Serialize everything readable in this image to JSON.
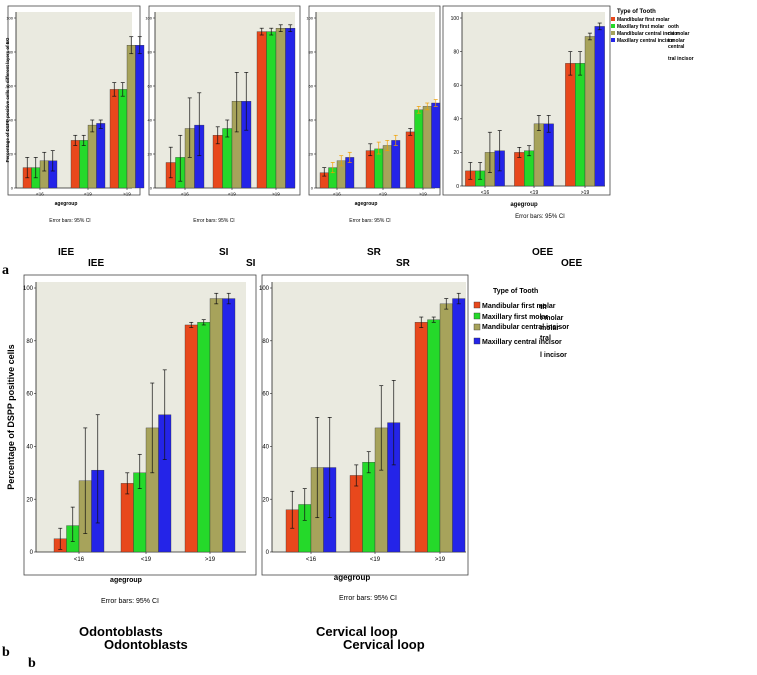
{
  "figure": {
    "panel_a_letter": "a",
    "panel_b_letters": [
      "b",
      "b"
    ],
    "legend_title": "Type of Tooth",
    "legend_entries": [
      "Mandibular first molar",
      "Maxillary first molar",
      "Mandibular central incisor",
      "Maxillary central incisor"
    ],
    "ghost_legend_top": [
      "ooth",
      "rst molar",
      "t molar",
      "central",
      "tral incisor"
    ],
    "ghost_legend_bottom": [
      "th",
      "t molar",
      "molar",
      "tral",
      "l incisor"
    ],
    "colors": [
      "#e8481c",
      "#25d92a",
      "#a7a35b",
      "#2424e8"
    ],
    "plot_bg": "#eaeae0",
    "whisker_highlight": "#f0a000"
  },
  "chart_data": [
    {
      "type": "bar",
      "id": "IEE",
      "title": "IEE",
      "title_ghost": "IEE",
      "xlabel": "agegroup",
      "ylabel": "Percentage of DSPP positive cells in different layers of EO",
      "caption": "Error bars: 95% CI",
      "categories": [
        "<16",
        "<19",
        ">19"
      ],
      "yticks": [
        "0",
        "20",
        "40",
        "60",
        "80",
        "100"
      ],
      "ylim": [
        0,
        100
      ],
      "series": [
        {
          "name": "Mandibular first molar",
          "values": [
            12,
            28,
            58
          ],
          "ci_low": [
            6,
            25,
            54
          ],
          "ci_high": [
            18,
            31,
            62
          ]
        },
        {
          "name": "Maxillary first molar",
          "values": [
            12,
            28,
            58
          ],
          "ci_low": [
            6,
            25,
            54
          ],
          "ci_high": [
            18,
            31,
            62
          ]
        },
        {
          "name": "Mandibular central incisor",
          "values": [
            16,
            37,
            84
          ],
          "ci_low": [
            10,
            33,
            79
          ],
          "ci_high": [
            21,
            40,
            89
          ]
        },
        {
          "name": "Maxillary central incisor",
          "values": [
            16,
            38,
            84
          ],
          "ci_low": [
            10,
            35,
            79
          ],
          "ci_high": [
            22,
            40,
            89
          ]
        }
      ]
    },
    {
      "type": "bar",
      "id": "SI",
      "title": "SI",
      "title_ghost": "SI",
      "xlabel": "",
      "ylabel": "",
      "caption": "Error bars: 95% CI",
      "categories": [
        "<16",
        "<19",
        ">19"
      ],
      "yticks": [
        "0",
        "20",
        "40",
        "60",
        "80",
        "100"
      ],
      "ylim": [
        0,
        100
      ],
      "series": [
        {
          "name": "Mandibular first molar",
          "values": [
            15,
            31,
            92
          ],
          "ci_low": [
            6,
            26,
            90
          ],
          "ci_high": [
            24,
            36,
            94
          ]
        },
        {
          "name": "Maxillary first molar",
          "values": [
            18,
            35,
            92
          ],
          "ci_low": [
            4,
            30,
            90
          ],
          "ci_high": [
            31,
            40,
            94
          ]
        },
        {
          "name": "Mandibular central incisor",
          "values": [
            35,
            51,
            94
          ],
          "ci_low": [
            18,
            33,
            92
          ],
          "ci_high": [
            53,
            68,
            96
          ]
        },
        {
          "name": "Maxillary central incisor",
          "values": [
            37,
            51,
            94
          ],
          "ci_low": [
            19,
            34,
            92
          ],
          "ci_high": [
            56,
            68,
            96
          ]
        }
      ]
    },
    {
      "type": "bar",
      "id": "SR",
      "title": "SR",
      "title_ghost": "SR",
      "xlabel": "agegroup",
      "ylabel": "",
      "caption": "Error bars: 95% CI",
      "categories": [
        "<16",
        "<19",
        ">19"
      ],
      "yticks": [
        "0",
        "20",
        "40",
        "60",
        "80",
        "100"
      ],
      "ylim": [
        0,
        100
      ],
      "series": [
        {
          "name": "Mandibular first molar",
          "values": [
            9,
            22,
            33
          ],
          "ci_low": [
            7,
            19,
            31
          ],
          "ci_high": [
            12,
            26,
            35
          ]
        },
        {
          "name": "Maxillary first molar",
          "values": [
            12,
            23,
            46
          ],
          "ci_low": [
            9,
            20,
            44
          ],
          "ci_high": [
            15,
            27,
            48
          ]
        },
        {
          "name": "Mandibular central incisor",
          "values": [
            16,
            25,
            48
          ],
          "ci_low": [
            13,
            22,
            46
          ],
          "ci_high": [
            19,
            28,
            50
          ]
        },
        {
          "name": "Maxillary central incisor",
          "values": [
            18,
            28,
            50
          ],
          "ci_low": [
            15,
            25,
            48
          ],
          "ci_high": [
            21,
            31,
            52
          ]
        }
      ]
    },
    {
      "type": "bar",
      "id": "OEE",
      "title": "OEE",
      "title_ghost": "OEE",
      "xlabel": "agegroup",
      "ylabel": "",
      "caption": "Error bars: 95% CI",
      "categories": [
        "<16",
        "<19",
        ">19"
      ],
      "yticks": [
        "0",
        "20",
        "40",
        "60",
        "80",
        "100"
      ],
      "ylim": [
        0,
        100
      ],
      "series": [
        {
          "name": "Mandibular first molar",
          "values": [
            9,
            20,
            73
          ],
          "ci_low": [
            4,
            17,
            66
          ],
          "ci_high": [
            14,
            23,
            80
          ]
        },
        {
          "name": "Maxillary first molar",
          "values": [
            9,
            21,
            73
          ],
          "ci_low": [
            4,
            18,
            66
          ],
          "ci_high": [
            14,
            24,
            80
          ]
        },
        {
          "name": "Mandibular central incisor",
          "values": [
            20,
            37,
            89
          ],
          "ci_low": [
            8,
            33,
            87
          ],
          "ci_high": [
            32,
            42,
            91
          ]
        },
        {
          "name": "Maxillary central incisor",
          "values": [
            21,
            37,
            95
          ],
          "ci_low": [
            9,
            32,
            93
          ],
          "ci_high": [
            33,
            42,
            97
          ]
        }
      ]
    },
    {
      "type": "bar",
      "id": "Odontoblasts",
      "title": "Odontoblasts",
      "title_ghost": "Odontoblasts",
      "xlabel": "agegroup",
      "ylabel": "Percentage of DSPP positive cells",
      "caption": "Error bars: 95% CI",
      "categories": [
        "<16",
        "<19",
        ">19"
      ],
      "yticks": [
        "0",
        "20",
        "40",
        "60",
        "80",
        "100"
      ],
      "ylim": [
        0,
        100
      ],
      "series": [
        {
          "name": "Mandibular first molar",
          "values": [
            5,
            26,
            86
          ],
          "ci_low": [
            1,
            22,
            85
          ],
          "ci_high": [
            9,
            30,
            87
          ]
        },
        {
          "name": "Maxillary first molar",
          "values": [
            10,
            30,
            87
          ],
          "ci_low": [
            4,
            24,
            86
          ],
          "ci_high": [
            17,
            37,
            88
          ]
        },
        {
          "name": "Mandibular central incisor",
          "values": [
            27,
            47,
            96
          ],
          "ci_low": [
            7,
            30,
            94
          ],
          "ci_high": [
            47,
            64,
            98
          ]
        },
        {
          "name": "Maxillary central incisor",
          "values": [
            31,
            52,
            96
          ],
          "ci_low": [
            11,
            35,
            94
          ],
          "ci_high": [
            52,
            69,
            98
          ]
        }
      ]
    },
    {
      "type": "bar",
      "id": "Cervical-loop",
      "title": "Cervical loop",
      "title_ghost": "Cervical loop",
      "xlabel": "agegroup",
      "ylabel": "",
      "caption": "Error bars: 95% CI",
      "categories": [
        "<16",
        "<19",
        ">19"
      ],
      "yticks": [
        "0",
        "20",
        "40",
        "60",
        "80",
        "100"
      ],
      "ylim": [
        0,
        100
      ],
      "series": [
        {
          "name": "Mandibular first molar",
          "values": [
            16,
            29,
            87
          ],
          "ci_low": [
            9,
            25,
            85
          ],
          "ci_high": [
            23,
            33,
            89
          ]
        },
        {
          "name": "Maxillary first molar",
          "values": [
            18,
            34,
            88
          ],
          "ci_low": [
            12,
            30,
            87
          ],
          "ci_high": [
            24,
            38,
            89
          ]
        },
        {
          "name": "Mandibular central incisor",
          "values": [
            32,
            47,
            94
          ],
          "ci_low": [
            13,
            31,
            92
          ],
          "ci_high": [
            51,
            63,
            96
          ]
        },
        {
          "name": "Maxillary central incisor",
          "values": [
            32,
            49,
            96
          ],
          "ci_low": [
            13,
            33,
            94
          ],
          "ci_high": [
            51,
            65,
            98
          ]
        }
      ]
    }
  ]
}
